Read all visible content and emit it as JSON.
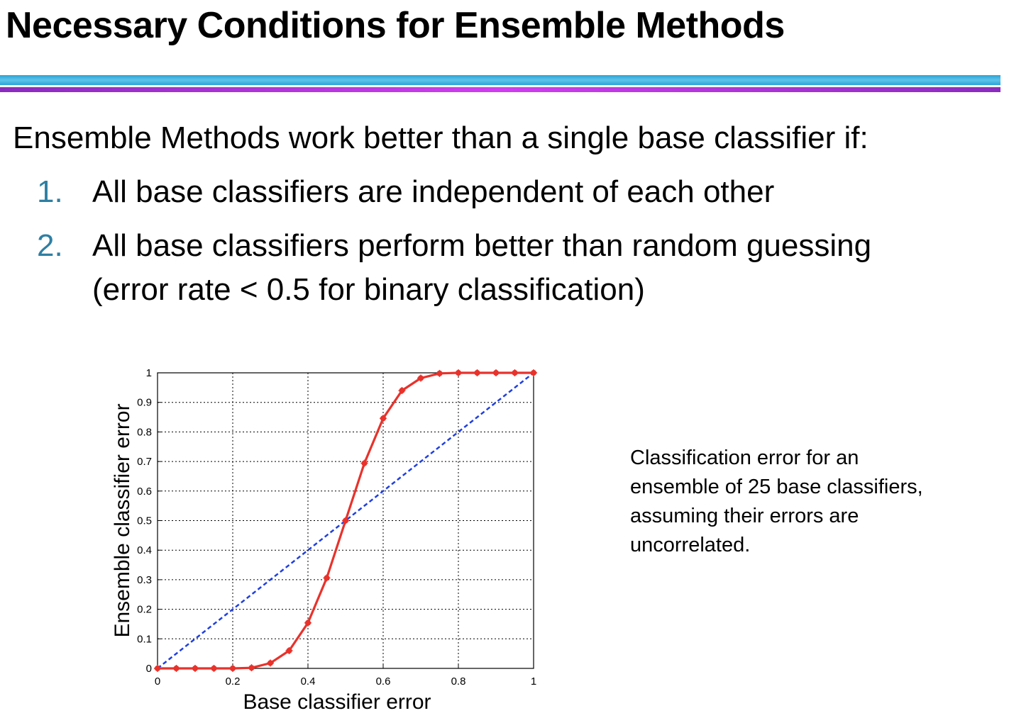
{
  "slide": {
    "title": "Necessary Conditions for Ensemble Methods",
    "intro": "Ensemble Methods work better than a single base classifier if:",
    "conditions": [
      {
        "number": "1.",
        "text": "All base classifiers are independent of each other"
      },
      {
        "number": "2.",
        "text": "All base classifiers perform better than random guessing",
        "text_line2": "(error rate < 0.5 for binary classification)"
      }
    ],
    "caption_lines": [
      "Classification error for an",
      "ensemble of 25 base classifiers,",
      "assuming their errors are",
      "uncorrelated."
    ],
    "colors": {
      "rule_blue": "#2aa3d6",
      "rule_purple": "#c03ae0",
      "number_color": "#2e7fa3"
    }
  },
  "chart_data": {
    "type": "line",
    "xlabel": "Base classifier error",
    "ylabel": "Ensemble classifier error",
    "xlim": [
      0,
      1
    ],
    "ylim": [
      0,
      1
    ],
    "x_ticks": [
      "0",
      "0.2",
      "0.4",
      "0.6",
      "0.8",
      "1"
    ],
    "x_tick_values": [
      0,
      0.2,
      0.4,
      0.6,
      0.8,
      1
    ],
    "y_ticks": [
      "0",
      "0.1",
      "0.2",
      "0.3",
      "0.4",
      "0.5",
      "0.6",
      "0.7",
      "0.8",
      "0.9",
      "1"
    ],
    "y_tick_values": [
      0,
      0.1,
      0.2,
      0.3,
      0.4,
      0.5,
      0.6,
      0.7,
      0.8,
      0.9,
      1
    ],
    "grid": true,
    "legend": "none",
    "x": [
      0,
      0.05,
      0.1,
      0.15,
      0.2,
      0.25,
      0.3,
      0.35,
      0.4,
      0.45,
      0.5,
      0.55,
      0.6,
      0.65,
      0.7,
      0.75,
      0.8,
      0.85,
      0.9,
      0.95,
      1.0
    ],
    "series": [
      {
        "style": "solid-with-markers",
        "color": "#e8322b",
        "values": [
          0,
          0,
          0,
          0,
          0,
          0.002,
          0.018,
          0.06,
          0.154,
          0.306,
          0.5,
          0.694,
          0.846,
          0.94,
          0.982,
          0.998,
          1,
          1,
          1,
          1,
          1
        ]
      },
      {
        "style": "dashed",
        "color": "#1f3fe0",
        "values": [
          0,
          0.05,
          0.1,
          0.15,
          0.2,
          0.25,
          0.3,
          0.35,
          0.4,
          0.45,
          0.5,
          0.55,
          0.6,
          0.65,
          0.7,
          0.75,
          0.8,
          0.85,
          0.9,
          0.95,
          1.0
        ]
      }
    ]
  }
}
